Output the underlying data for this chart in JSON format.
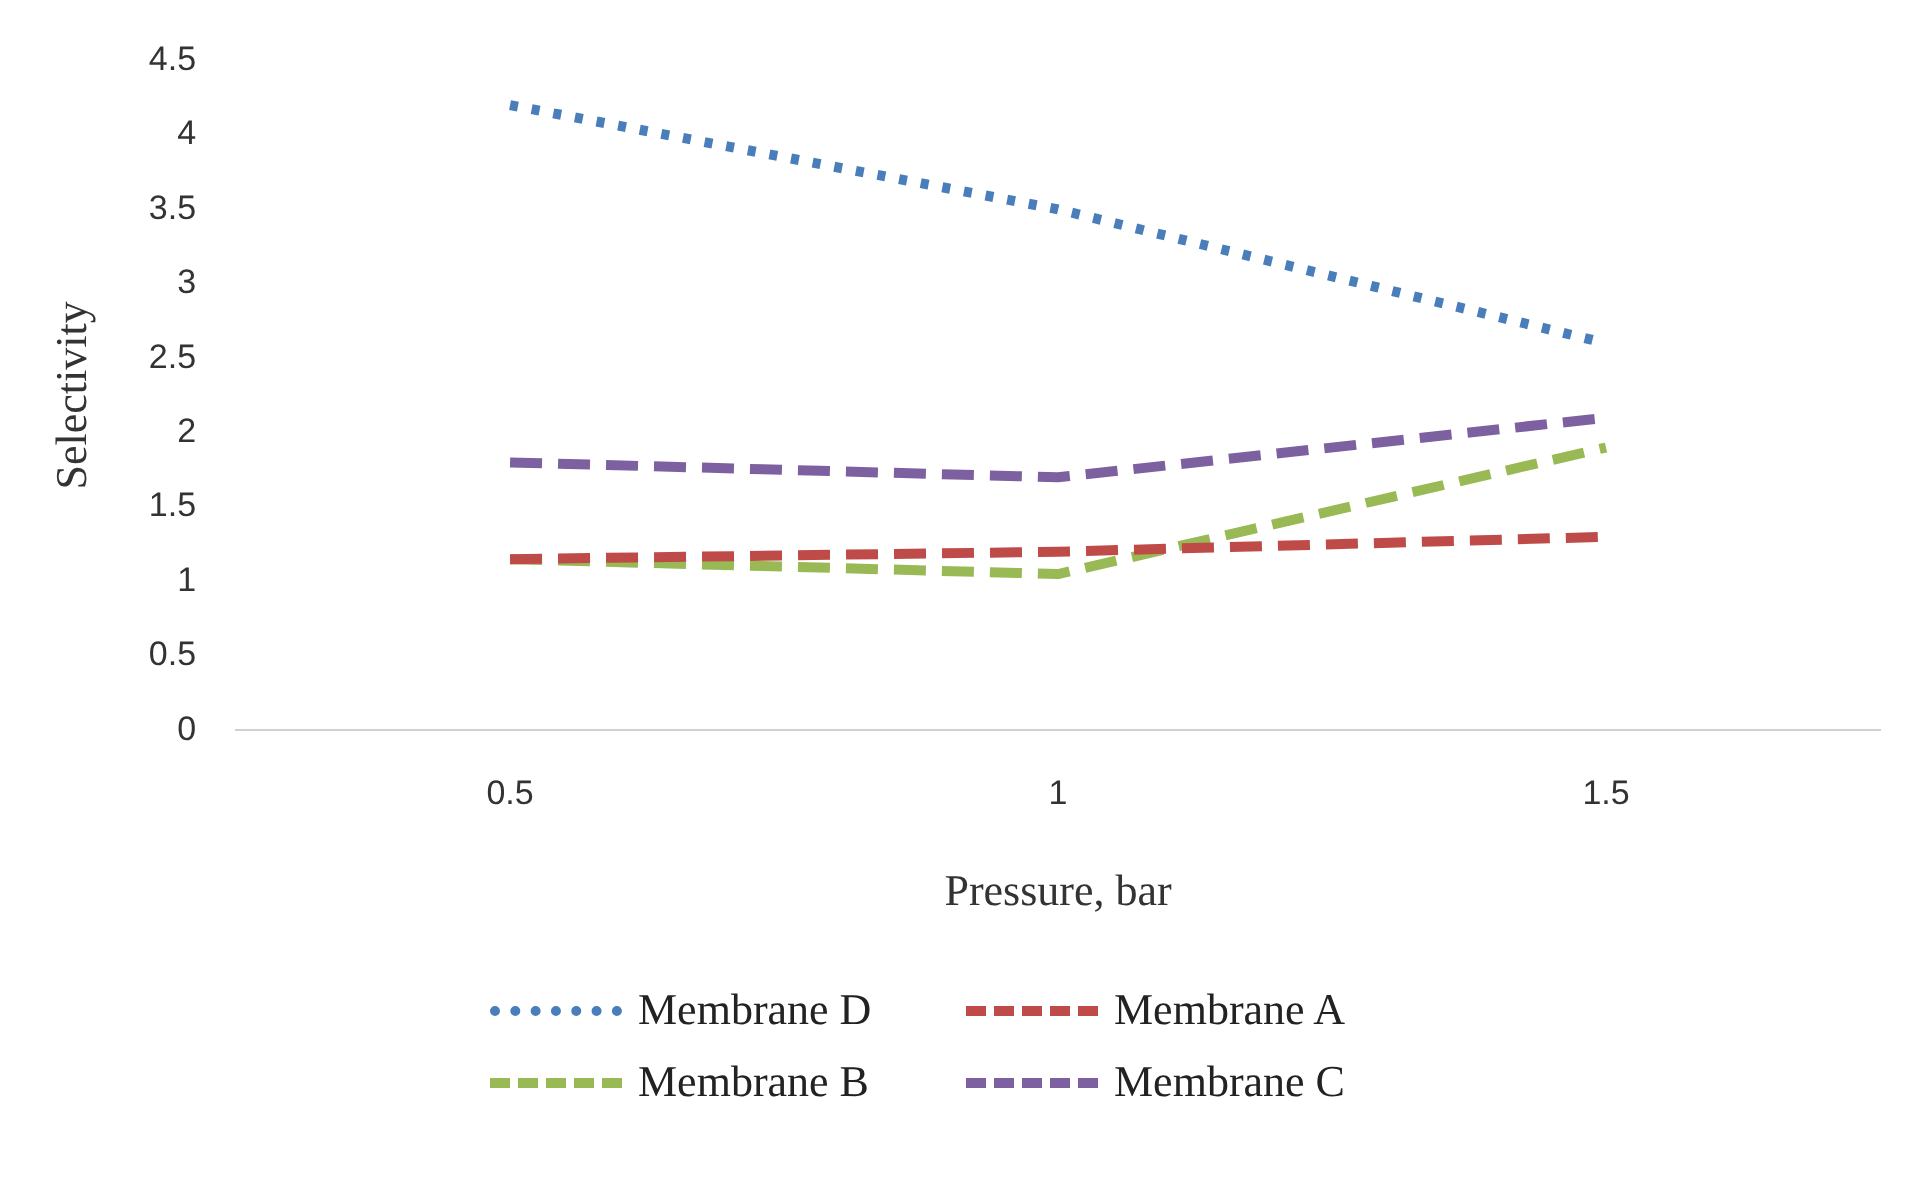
{
  "chart_data": {
    "type": "line",
    "xlabel": "Pressure, bar",
    "ylabel": "Selectivity",
    "categories": [
      "0.5",
      "1",
      "1.5"
    ],
    "series": [
      {
        "name": "Membrane D",
        "color": "#4a7ebb",
        "values": [
          4.2,
          3.5,
          2.6
        ],
        "line_style": "dotted"
      },
      {
        "name": "Membrane A",
        "color": "#be4b48",
        "values": [
          1.15,
          1.2,
          1.3
        ],
        "line_style": "dashed"
      },
      {
        "name": "Membrane B",
        "color": "#98b954",
        "values": [
          1.15,
          1.05,
          1.9
        ],
        "line_style": "dashed"
      },
      {
        "name": "Membrane C",
        "color": "#7d60a0",
        "values": [
          1.8,
          1.7,
          2.1
        ],
        "line_style": "dashed"
      }
    ],
    "ylim": [
      0,
      4.5
    ],
    "yticks": [
      0,
      0.5,
      1,
      1.5,
      2,
      2.5,
      3,
      3.5,
      4,
      4.5
    ],
    "grid": false,
    "legend": "bottom",
    "marker": "none"
  }
}
